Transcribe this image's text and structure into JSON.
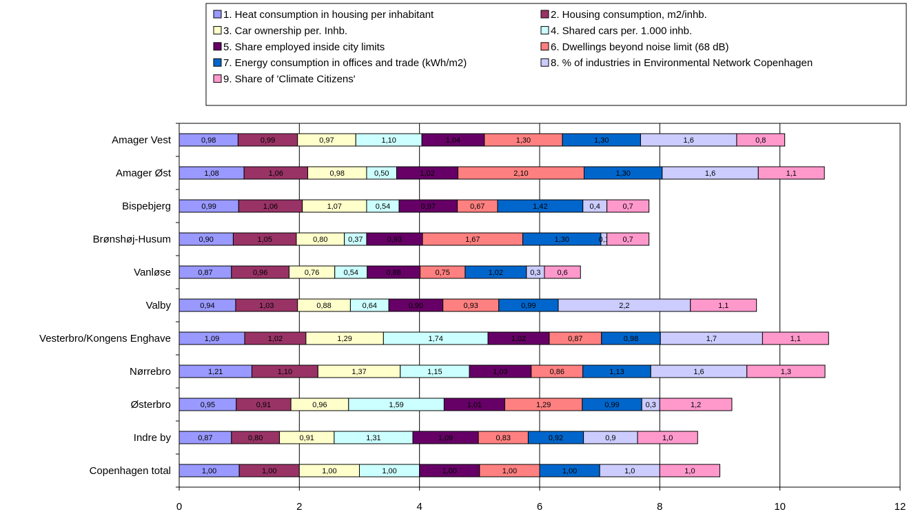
{
  "chart_data": {
    "type": "bar",
    "orientation": "horizontal",
    "stacked": true,
    "categories": [
      "Amager Vest",
      "Amager Øst",
      "Bispebjerg",
      "Brønshøj-Husum",
      "Vanløse",
      "Valby",
      "Vesterbro/Kongens Enghave",
      "Nørrebro",
      "Østerbro",
      "Indre by",
      "Copenhagen total"
    ],
    "xlim": [
      0,
      12
    ],
    "xticks": [
      "0",
      "2",
      "4",
      "6",
      "8",
      "10",
      "12"
    ],
    "grid": true,
    "legend_position": "top",
    "series": [
      {
        "name": "1. Heat consumption in housing per inhabitant",
        "color": "#9999ff",
        "values": [
          0.98,
          1.08,
          0.99,
          0.9,
          0.87,
          0.94,
          1.09,
          1.21,
          0.95,
          0.87,
          1.0
        ],
        "labels": [
          "0,98",
          "1,08",
          "0,99",
          "0,90",
          "0,87",
          "0,94",
          "1,09",
          "1,21",
          "0,95",
          "0,87",
          "1,00"
        ]
      },
      {
        "name": "2. Housing consumption, m2/inhb.",
        "color": "#993366",
        "values": [
          0.99,
          1.06,
          1.06,
          1.05,
          0.96,
          1.03,
          1.02,
          1.1,
          0.91,
          0.8,
          1.0
        ],
        "labels": [
          "0,99",
          "1,06",
          "1,06",
          "1,05",
          "0,96",
          "1,03",
          "1,02",
          "1,10",
          "0,91",
          "0,80",
          "1,00"
        ]
      },
      {
        "name": "3. Car ownership per. Inhb.",
        "color": "#ffffcc",
        "values": [
          0.97,
          0.98,
          1.07,
          0.8,
          0.76,
          0.88,
          1.29,
          1.37,
          0.96,
          0.91,
          1.0
        ],
        "labels": [
          "0,97",
          "0,98",
          "1,07",
          "0,80",
          "0,76",
          "0,88",
          "1,29",
          "1,37",
          "0,96",
          "0,91",
          "1,00"
        ]
      },
      {
        "name": "4. Shared cars per. 1.000 inhb.",
        "color": "#ccffff",
        "values": [
          1.1,
          0.5,
          0.54,
          0.37,
          0.54,
          0.64,
          1.74,
          1.15,
          1.59,
          1.31,
          1.0
        ],
        "labels": [
          "1,10",
          "0,50",
          "0,54",
          "0,37",
          "0,54",
          "0,64",
          "1,74",
          "1,15",
          "1,59",
          "1,31",
          "1,00"
        ]
      },
      {
        "name": "5. Share employed inside city limits",
        "color": "#660066",
        "values": [
          1.04,
          1.02,
          0.97,
          0.93,
          0.88,
          0.9,
          1.02,
          1.03,
          1.01,
          1.09,
          1.0
        ],
        "labels": [
          "1,04",
          "1,02",
          "0,97",
          "0,93",
          "0,88",
          "0,90",
          "1,02",
          "1,03",
          "1,01",
          "1,09",
          "1,00"
        ]
      },
      {
        "name": "6. Dwellings beyond noise limit (68 dB)",
        "color": "#ff8080",
        "values": [
          1.3,
          2.1,
          0.67,
          1.67,
          0.75,
          0.93,
          0.87,
          0.86,
          1.29,
          0.83,
          1.0
        ],
        "labels": [
          "1,30",
          "2,10",
          "0,67",
          "1,67",
          "0,75",
          "0,93",
          "0,87",
          "0,86",
          "1,29",
          "0,83",
          "1,00"
        ]
      },
      {
        "name": "7. Energy consumption in offices and trade (kWh/m2)",
        "color": "#0066cc",
        "values": [
          1.3,
          1.3,
          1.42,
          1.3,
          1.02,
          0.99,
          0.98,
          1.13,
          0.99,
          0.92,
          1.0
        ],
        "labels": [
          "1,30",
          "1,30",
          "1,42",
          "1,30",
          "1,02",
          "0,99",
          "0,98",
          "1,13",
          "0,99",
          "0,92",
          "1,00"
        ]
      },
      {
        "name": "8. % of industries in Environmental Network Copenhagen",
        "color": "#ccccff",
        "values": [
          1.6,
          1.6,
          0.4,
          0.1,
          0.3,
          2.2,
          1.7,
          1.6,
          0.3,
          0.9,
          1.0
        ],
        "labels": [
          "1,6",
          "1,6",
          "0,4",
          "0,1",
          "0,3",
          "2,2",
          "1,7",
          "1,6",
          "0,3",
          "0,9",
          "1,0"
        ]
      },
      {
        "name": "9. Share of 'Climate Citizens'",
        "color": "#ff99cc",
        "values": [
          0.8,
          1.1,
          0.7,
          0.7,
          0.6,
          1.1,
          1.1,
          1.3,
          1.2,
          1.0,
          1.0
        ],
        "labels": [
          "0,8",
          "1,1",
          "0,7",
          "0,7",
          "0,6",
          "1,1",
          "1,1",
          "1,3",
          "1,2",
          "1,0",
          "1,0"
        ]
      }
    ]
  }
}
